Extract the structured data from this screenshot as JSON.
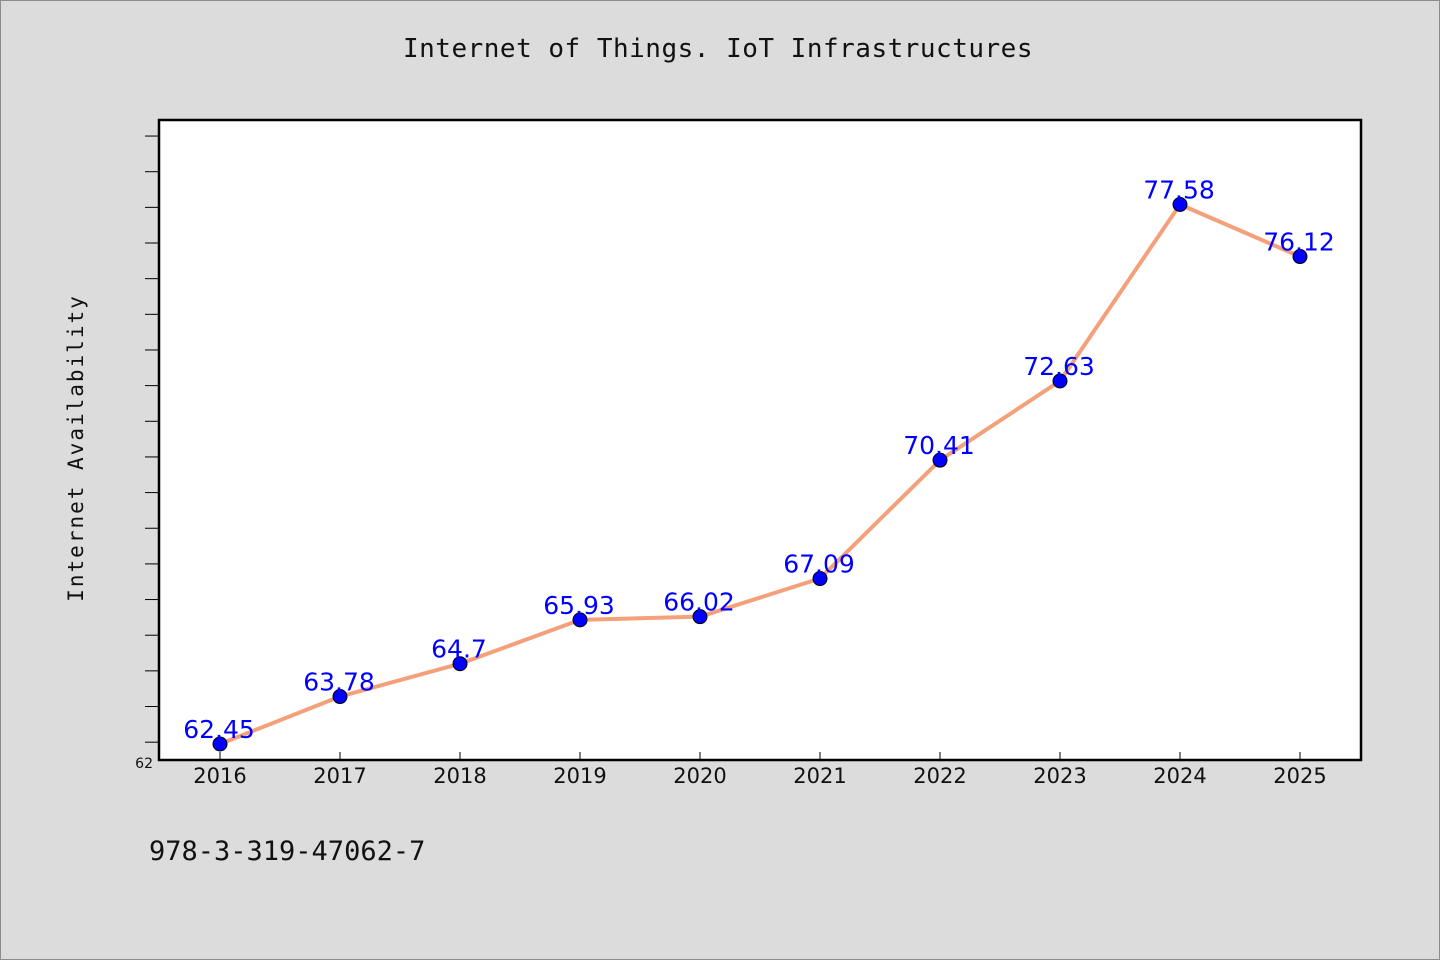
{
  "chart_data": {
    "type": "line",
    "title": "Internet of Things. IoT Infrastructures",
    "xlabel": "",
    "ylabel": "Internet Availability",
    "categories": [
      "2016",
      "2017",
      "2018",
      "2019",
      "2020",
      "2021",
      "2022",
      "2023",
      "2024",
      "2025"
    ],
    "values": [
      62.45,
      63.78,
      64.7,
      65.93,
      66.02,
      67.09,
      70.41,
      72.63,
      77.58,
      76.12
    ],
    "data_labels": [
      "62.45",
      "63.78",
      "64.7",
      "65.93",
      "66.02",
      "67.09",
      "70.41",
      "72.63",
      "77.58",
      "76.12"
    ],
    "ylim": [
      62,
      79.95
    ],
    "y_tick_labels": [
      "62"
    ],
    "grid": false,
    "legend": "none",
    "line_color": "#f4a07a",
    "marker_color": "#0000ff",
    "data_label_color": "#0000ff",
    "plot_background": "#ffffff",
    "page_background": "#dcdcdc"
  },
  "footer": {
    "isbn": "978-3-319-47062-7"
  }
}
